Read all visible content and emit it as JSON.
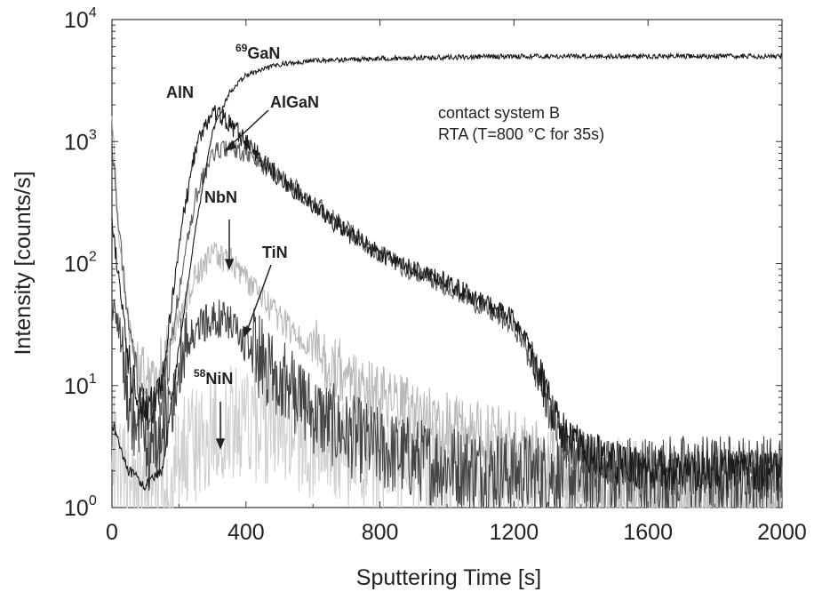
{
  "chart_data": {
    "type": "line",
    "xlabel": "Sputtering Time [s]",
    "ylabel": "Intensity [counts/s]",
    "xlim": [
      0,
      2000
    ],
    "ylim": [
      1,
      10000
    ],
    "yscale": "log",
    "grid": false,
    "x_ticks": [
      0,
      400,
      800,
      1200,
      1600,
      2000
    ],
    "x_tick_labels": [
      "0",
      "400",
      "800",
      "1200",
      "1600",
      "2000"
    ],
    "y_ticks": [
      1,
      10,
      100,
      1000,
      10000
    ],
    "y_tick_labels": [
      {
        "base": "10",
        "exp": "0"
      },
      {
        "base": "10",
        "exp": "1"
      },
      {
        "base": "10",
        "exp": "2"
      },
      {
        "base": "10",
        "exp": "3"
      },
      {
        "base": "10",
        "exp": "4"
      }
    ],
    "annotation": [
      "contact system B",
      "RTA (T=800 °C for 35s)"
    ],
    "series": [
      {
        "name": "69GaN",
        "color": "#1a1a1a",
        "points": [
          [
            0,
            5
          ],
          [
            50,
            2
          ],
          [
            100,
            1.5
          ],
          [
            150,
            2
          ],
          [
            200,
            20
          ],
          [
            250,
            200
          ],
          [
            300,
            1200
          ],
          [
            350,
            2500
          ],
          [
            400,
            3500
          ],
          [
            500,
            4300
          ],
          [
            600,
            4600
          ],
          [
            800,
            4800
          ],
          [
            1000,
            4900
          ],
          [
            1200,
            5000
          ],
          [
            1600,
            5000
          ],
          [
            2000,
            5000
          ]
        ]
      },
      {
        "name": "AlN",
        "color": "#1a1a1a",
        "points": [
          [
            0,
            200
          ],
          [
            20,
            80
          ],
          [
            50,
            15
          ],
          [
            80,
            8
          ],
          [
            110,
            6
          ],
          [
            150,
            10
          ],
          [
            200,
            150
          ],
          [
            250,
            900
          ],
          [
            300,
            1750
          ],
          [
            330,
            1600
          ],
          [
            400,
            1000
          ],
          [
            500,
            500
          ],
          [
            600,
            300
          ],
          [
            700,
            180
          ],
          [
            800,
            120
          ],
          [
            900,
            90
          ],
          [
            1000,
            70
          ],
          [
            1100,
            50
          ],
          [
            1200,
            35
          ],
          [
            1250,
            20
          ],
          [
            1300,
            8
          ],
          [
            1350,
            4
          ],
          [
            1400,
            3
          ],
          [
            1500,
            2.3
          ],
          [
            1600,
            2
          ],
          [
            1800,
            2
          ],
          [
            2000,
            2
          ]
        ]
      },
      {
        "name": "AlGaN",
        "color": "#606060",
        "points": [
          [
            0,
            1000
          ],
          [
            20,
            200
          ],
          [
            50,
            30
          ],
          [
            80,
            10
          ],
          [
            110,
            6
          ],
          [
            150,
            7
          ],
          [
            200,
            60
          ],
          [
            250,
            350
          ],
          [
            300,
            800
          ],
          [
            340,
            880
          ],
          [
            400,
            800
          ],
          [
            500,
            520
          ],
          [
            600,
            320
          ],
          [
            700,
            190
          ],
          [
            800,
            120
          ],
          [
            900,
            85
          ],
          [
            1000,
            65
          ],
          [
            1100,
            45
          ],
          [
            1200,
            30
          ],
          [
            1250,
            18
          ],
          [
            1300,
            7
          ],
          [
            1350,
            3.5
          ],
          [
            1400,
            2.8
          ],
          [
            1500,
            2.3
          ],
          [
            1600,
            2
          ],
          [
            1800,
            2
          ],
          [
            2000,
            2
          ]
        ]
      },
      {
        "name": "NbN",
        "color": "#b8b8b8",
        "points": [
          [
            0,
            1500
          ],
          [
            20,
            200
          ],
          [
            50,
            30
          ],
          [
            80,
            15
          ],
          [
            110,
            12
          ],
          [
            150,
            15
          ],
          [
            200,
            35
          ],
          [
            250,
            80
          ],
          [
            300,
            120
          ],
          [
            350,
            110
          ],
          [
            400,
            75
          ],
          [
            500,
            35
          ],
          [
            600,
            20
          ],
          [
            700,
            12
          ],
          [
            800,
            8
          ],
          [
            900,
            6
          ],
          [
            1000,
            5
          ],
          [
            1100,
            4
          ],
          [
            1200,
            3.5
          ],
          [
            1300,
            2.5
          ],
          [
            1400,
            1.8
          ],
          [
            1500,
            1.4
          ],
          [
            1600,
            1.2
          ],
          [
            1800,
            1.1
          ],
          [
            2000,
            1.1
          ]
        ]
      },
      {
        "name": "TiN",
        "color": "#454545",
        "points": [
          [
            0,
            50
          ],
          [
            20,
            30
          ],
          [
            50,
            8
          ],
          [
            80,
            4
          ],
          [
            110,
            3
          ],
          [
            150,
            4
          ],
          [
            200,
            15
          ],
          [
            250,
            28
          ],
          [
            300,
            37
          ],
          [
            350,
            32
          ],
          [
            400,
            22
          ],
          [
            500,
            12
          ],
          [
            600,
            6
          ],
          [
            700,
            4
          ],
          [
            800,
            3
          ],
          [
            900,
            2.5
          ],
          [
            1000,
            2.2
          ],
          [
            1200,
            1.9
          ],
          [
            1400,
            1.8
          ],
          [
            1600,
            1.8
          ],
          [
            2000,
            1.8
          ]
        ]
      },
      {
        "name": "58NiN",
        "color": "#cfcfcf",
        "points": [
          [
            0,
            3
          ],
          [
            50,
            1.5
          ],
          [
            100,
            1.2
          ],
          [
            150,
            1.3
          ],
          [
            200,
            2.5
          ],
          [
            300,
            4.5
          ],
          [
            400,
            5
          ],
          [
            500,
            4.5
          ],
          [
            600,
            3.5
          ],
          [
            700,
            3
          ],
          [
            800,
            2.5
          ],
          [
            1000,
            2
          ],
          [
            1200,
            1.6
          ],
          [
            1400,
            1.3
          ],
          [
            1600,
            1.2
          ],
          [
            2000,
            1.1
          ]
        ]
      }
    ],
    "labels": [
      {
        "pre_sup": "69",
        "text": "GaN"
      },
      {
        "pre_sup": "",
        "text": "AlN"
      },
      {
        "pre_sup": "",
        "text": "AlGaN"
      },
      {
        "pre_sup": "",
        "text": "NbN"
      },
      {
        "pre_sup": "",
        "text": "TiN"
      },
      {
        "pre_sup": "58",
        "text": "NiN"
      }
    ]
  }
}
